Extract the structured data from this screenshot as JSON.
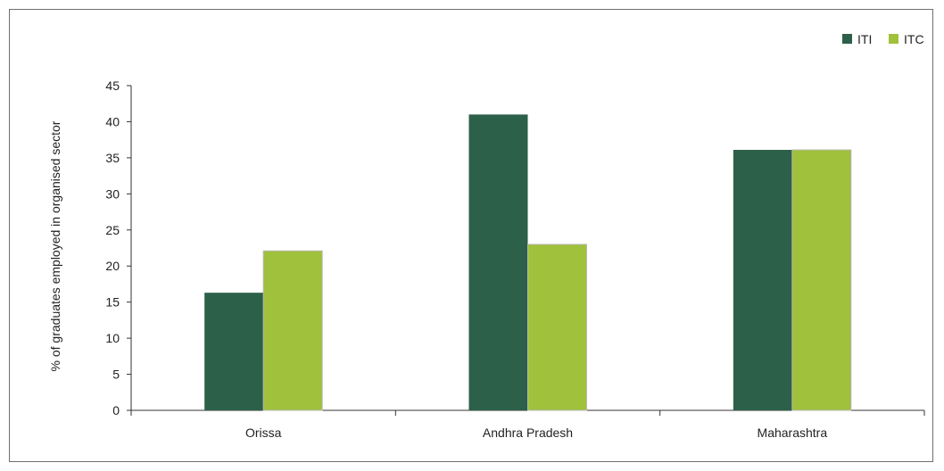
{
  "chart_data": {
    "type": "bar",
    "categories": [
      "Orissa",
      "Andhra Pradesh",
      "Maharashtra"
    ],
    "series": [
      {
        "name": "ITI",
        "values": [
          16.3,
          41,
          36.1
        ],
        "color": "#2d6049"
      },
      {
        "name": "ITC",
        "values": [
          22.1,
          23,
          36.1
        ],
        "color": "#9fc13b"
      }
    ],
    "ylabel": "% of graduates employed in organised sector",
    "xlabel": "",
    "ylim": [
      0,
      45
    ],
    "yticks": [
      0,
      5,
      10,
      15,
      20,
      25,
      30,
      35,
      40,
      45
    ],
    "grid": false,
    "legend": "top-right"
  }
}
